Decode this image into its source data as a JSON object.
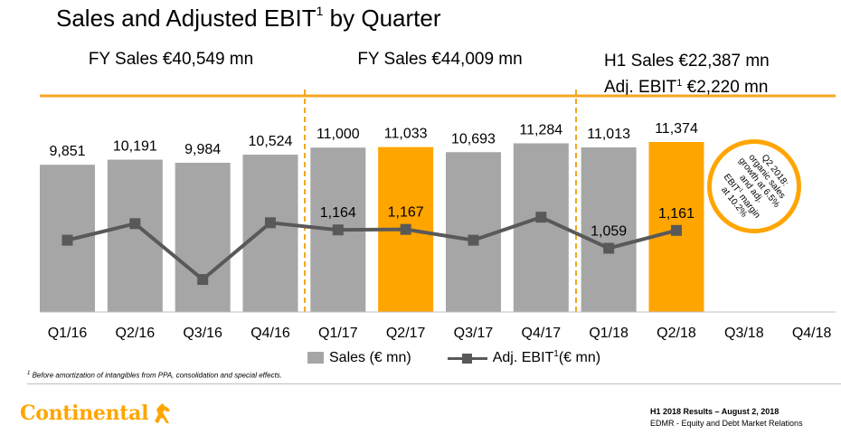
{
  "title": "Sales and Adjusted EBIT",
  "title_sup": "1",
  "title_suffix": "by Quarter",
  "periods": {
    "fy16": "FY Sales €40,549 mn",
    "fy17": "FY Sales €44,009 mn",
    "h1_line1": "H1 Sales €22,387 mn",
    "h1_line2_a": "Adj. EBIT",
    "h1_line2_sup": "1",
    "h1_line2_b": "€2,220 mn"
  },
  "chart_data": {
    "type": "bar",
    "categories": [
      "Q1/16",
      "Q2/16",
      "Q3/16",
      "Q4/16",
      "Q1/17",
      "Q2/17",
      "Q3/17",
      "Q4/17",
      "Q1/18",
      "Q2/18",
      "Q3/18",
      "Q4/18"
    ],
    "series": [
      {
        "name": "Sales (€ mn)",
        "type": "bar",
        "values": [
          9851,
          10191,
          9984,
          10524,
          11000,
          11033,
          10693,
          11284,
          11013,
          11374,
          null,
          null
        ],
        "labels": [
          "9,851",
          "10,191",
          "9,984",
          "10,524",
          "11,000",
          "11,033",
          "10,693",
          "11,284",
          "11,013",
          "11,374",
          "",
          ""
        ],
        "highlight": [
          false,
          false,
          false,
          false,
          false,
          true,
          false,
          false,
          false,
          true,
          false,
          false
        ]
      },
      {
        "name": "Adj. EBIT¹(€ mn)",
        "type": "line",
        "values": [
          1105,
          1200,
          880,
          1205,
          1164,
          1167,
          1105,
          1237,
          1059,
          1161,
          null,
          null
        ],
        "labels": [
          "",
          "",
          "",
          "",
          "1,164",
          "1,167",
          "",
          "",
          "1,059",
          "1,161",
          "",
          ""
        ]
      }
    ],
    "colors": {
      "bar": "#a6a6a6",
      "highlight": "#ffa500",
      "line": "#595959",
      "accent": "#f5a623"
    }
  },
  "legend": {
    "sales": "Sales (€ mn)",
    "ebit_a": "Adj. EBIT",
    "ebit_sup": "1",
    "ebit_b": "(€ mn)"
  },
  "callout": {
    "line1": "Q2 2018:",
    "line2": "organic sales",
    "line3": "growth at 6.5%",
    "line4": "and adj.",
    "line5_a": "EBIT",
    "line5_sup": "1",
    "line5_b": "margin",
    "line6": "at 10.2%"
  },
  "footnote": {
    "sup": "1",
    "text": "Before amortization of intangibles from PPA, consolidation and special effects."
  },
  "logo": {
    "text": "Continental",
    "icon": "horse-icon"
  },
  "footer": {
    "line1": "H1 2018 Results – August 2, 2018",
    "line2": "EDMR - Equity and Debt Market Relations"
  }
}
